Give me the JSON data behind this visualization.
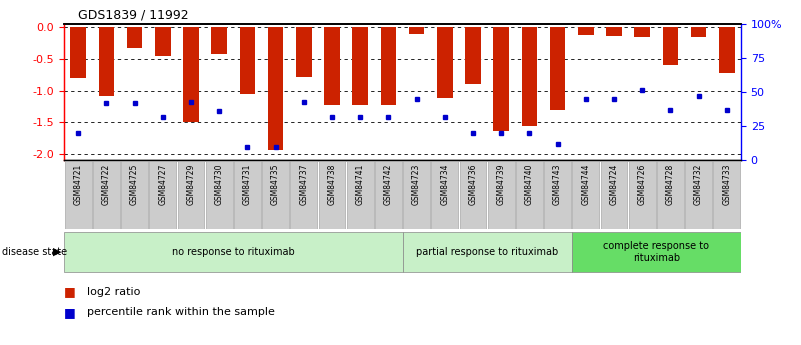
{
  "title": "GDS1839 / 11992",
  "samples": [
    "GSM84721",
    "GSM84722",
    "GSM84725",
    "GSM84727",
    "GSM84729",
    "GSM84730",
    "GSM84731",
    "GSM84735",
    "GSM84737",
    "GSM84738",
    "GSM84741",
    "GSM84742",
    "GSM84723",
    "GSM84734",
    "GSM84736",
    "GSM84739",
    "GSM84740",
    "GSM84743",
    "GSM84744",
    "GSM84724",
    "GSM84726",
    "GSM84728",
    "GSM84732",
    "GSM84733"
  ],
  "log2_ratio": [
    -0.8,
    -1.08,
    -0.32,
    -0.45,
    -1.5,
    -0.42,
    -1.05,
    -1.93,
    -0.78,
    -1.22,
    -1.22,
    -1.22,
    -0.1,
    -1.12,
    -0.9,
    -1.63,
    -1.55,
    -1.3,
    -0.12,
    -0.14,
    -0.16,
    -0.6,
    -0.15,
    -0.72
  ],
  "percentile": [
    20,
    42,
    42,
    32,
    43,
    36,
    10,
    10,
    43,
    32,
    32,
    32,
    45,
    32,
    20,
    20,
    20,
    12,
    45,
    45,
    52,
    37,
    47,
    37
  ],
  "groups": [
    {
      "label": "no response to rituximab",
      "start": 0,
      "end": 12,
      "color": "#c8f0c8"
    },
    {
      "label": "partial response to rituximab",
      "start": 12,
      "end": 18,
      "color": "#c8f0c8"
    },
    {
      "label": "complete response to\nrituximab",
      "start": 18,
      "end": 24,
      "color": "#66dd66"
    }
  ],
  "bar_color": "#cc2200",
  "dot_color": "#0000cc",
  "ylim_left": [
    -2.1,
    0.05
  ],
  "ylim_right": [
    -2.1,
    0.05
  ],
  "yticks_left": [
    0.0,
    -0.5,
    -1.0,
    -1.5,
    -2.0
  ],
  "yticks_right_vals": [
    0,
    25,
    50,
    75,
    100
  ],
  "yticks_right_labels": [
    "0",
    "25",
    "50",
    "75",
    "100%"
  ],
  "pct_min": 0,
  "pct_max": 100,
  "background": "#ffffff"
}
